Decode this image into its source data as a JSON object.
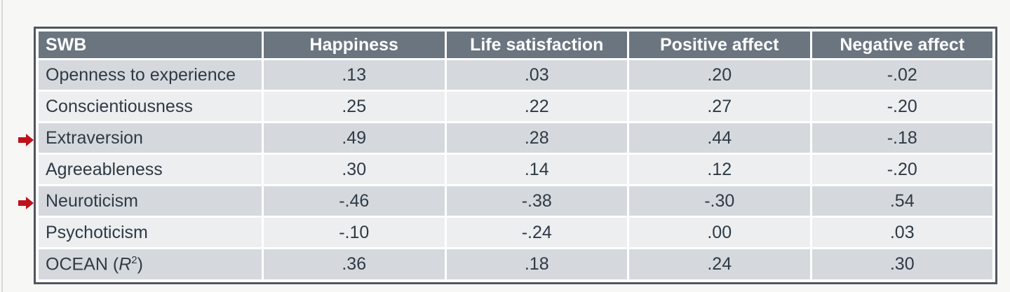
{
  "table": {
    "headers": [
      "SWB",
      "Happiness",
      "Life satisfaction",
      "Positive affect",
      "Negative affect"
    ],
    "rows": [
      {
        "label": "Openness to experience",
        "values": [
          ".13",
          ".03",
          ".20",
          "-.02"
        ]
      },
      {
        "label": "Conscientiousness",
        "values": [
          ".25",
          ".22",
          ".27",
          "-.20"
        ]
      },
      {
        "label": "Extraversion",
        "values": [
          ".49",
          ".28",
          ".44",
          "-.18"
        ]
      },
      {
        "label": "Agreeableness",
        "values": [
          ".30",
          ".14",
          ".12",
          "-.20"
        ]
      },
      {
        "label": "Neuroticism",
        "values": [
          "-.46",
          "-.38",
          "-.30",
          ".54"
        ]
      },
      {
        "label": "Psychoticism",
        "values": [
          "-.10",
          "-.24",
          ".00",
          ".03"
        ]
      },
      {
        "label_prefix": "OCEAN (",
        "label_italic": "R",
        "label_sup": "2",
        "label_suffix": ")",
        "values": [
          ".36",
          ".18",
          ".24",
          ".30"
        ]
      }
    ]
  },
  "markers": {
    "arrow_color": "#c0111a",
    "arrow_icon": "arrow-right-icon",
    "marked_rows": [
      "Extraversion",
      "Neuroticism"
    ]
  }
}
